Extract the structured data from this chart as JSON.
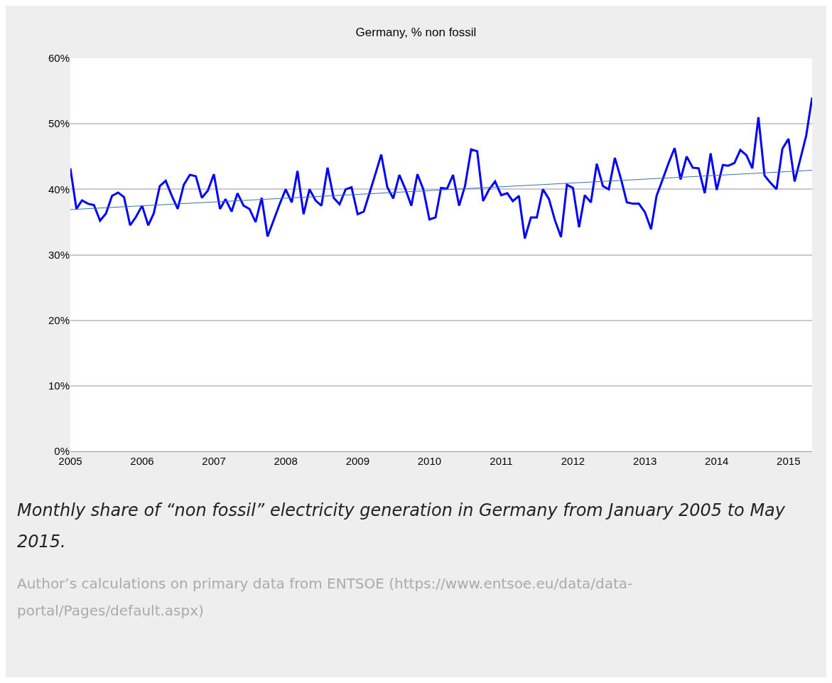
{
  "chart_data": {
    "type": "line",
    "title": "Germany, % non fossil",
    "x": [
      "2005-01",
      "2005-02",
      "2005-03",
      "2005-04",
      "2005-05",
      "2005-06",
      "2005-07",
      "2005-08",
      "2005-09",
      "2005-10",
      "2005-11",
      "2005-12",
      "2006-01",
      "2006-02",
      "2006-03",
      "2006-04",
      "2006-05",
      "2006-06",
      "2006-07",
      "2006-08",
      "2006-09",
      "2006-10",
      "2006-11",
      "2006-12",
      "2007-01",
      "2007-02",
      "2007-03",
      "2007-04",
      "2007-05",
      "2007-06",
      "2007-07",
      "2007-08",
      "2007-09",
      "2007-10",
      "2007-11",
      "2007-12",
      "2008-01",
      "2008-02",
      "2008-03",
      "2008-04",
      "2008-05",
      "2008-06",
      "2008-07",
      "2008-08",
      "2008-09",
      "2008-10",
      "2008-11",
      "2008-12",
      "2009-01",
      "2009-02",
      "2009-03",
      "2009-04",
      "2009-05",
      "2009-06",
      "2009-07",
      "2009-08",
      "2009-09",
      "2009-10",
      "2009-11",
      "2009-12",
      "2010-01",
      "2010-02",
      "2010-03",
      "2010-04",
      "2010-05",
      "2010-06",
      "2010-07",
      "2010-08",
      "2010-09",
      "2010-10",
      "2010-11",
      "2010-12",
      "2011-01",
      "2011-02",
      "2011-03",
      "2011-04",
      "2011-05",
      "2011-06",
      "2011-07",
      "2011-08",
      "2011-09",
      "2011-10",
      "2011-11",
      "2011-12",
      "2012-01",
      "2012-02",
      "2012-03",
      "2012-04",
      "2012-05",
      "2012-06",
      "2012-07",
      "2012-08",
      "2012-09",
      "2012-10",
      "2012-11",
      "2012-12",
      "2013-01",
      "2013-02",
      "2013-03",
      "2013-04",
      "2013-05",
      "2013-06",
      "2013-07",
      "2013-08",
      "2013-09",
      "2013-10",
      "2013-11",
      "2013-12",
      "2014-01",
      "2014-02",
      "2014-03",
      "2014-04",
      "2014-05",
      "2014-06",
      "2014-07",
      "2014-08",
      "2014-09",
      "2014-10",
      "2014-11",
      "2014-12",
      "2015-01",
      "2015-02",
      "2015-03",
      "2015-04",
      "2015-05"
    ],
    "series": [
      {
        "color": "#0000ff",
        "values": [
          43.2,
          37.0,
          38.3,
          37.8,
          37.6,
          35.2,
          36.3,
          39.0,
          39.5,
          38.8,
          34.5,
          35.8,
          37.5,
          34.5,
          36.3,
          40.5,
          41.3,
          39.0,
          37.0,
          40.7,
          42.2,
          42.0,
          38.7,
          39.8,
          42.3,
          37.0,
          38.5,
          36.6,
          39.4,
          37.5,
          37.0,
          35.0,
          38.7,
          32.8,
          35.3,
          37.7,
          40.0,
          38.0,
          42.8,
          36.2,
          40.0,
          38.3,
          37.5,
          43.3,
          38.7,
          37.7,
          40.0,
          40.3,
          36.2,
          36.6,
          39.3,
          42.3,
          45.3,
          40.3,
          38.6,
          42.2,
          40.0,
          37.5,
          42.3,
          40.0,
          35.4,
          35.7,
          40.2,
          40.1,
          42.2,
          37.5,
          40.5,
          46.1,
          45.8,
          38.2,
          40.0,
          41.2,
          39.1,
          39.4,
          38.2,
          39.0,
          32.5,
          35.7,
          35.7,
          40.0,
          38.5,
          35.3,
          32.7,
          40.7,
          40.2,
          34.2,
          39.1,
          38.0,
          43.9,
          40.5,
          40.0,
          44.8,
          41.6,
          38.0,
          37.8,
          37.8,
          36.5,
          33.9,
          39.0,
          41.5,
          44.0,
          46.3,
          41.5,
          45.0,
          43.3,
          43.2,
          39.4,
          45.5,
          39.9,
          43.7,
          43.6,
          44.0,
          46.0,
          45.2,
          43.2,
          51.0,
          42.1,
          41.0,
          40.0,
          46.2,
          47.7,
          41.2,
          44.5,
          48.2,
          54.0
        ]
      },
      {
        "type": "line",
        "color": "#3a6ea5",
        "x": [
          "2005-01",
          "2015-05"
        ],
        "values": [
          36.9,
          42.9
        ]
      }
    ],
    "xlim": [
      "2005-01",
      "2015-05"
    ],
    "xticks": [
      "2005",
      "2006",
      "2007",
      "2008",
      "2009",
      "2010",
      "2011",
      "2012",
      "2013",
      "2014",
      "2015"
    ],
    "ylim": [
      0,
      60
    ],
    "yticks": [
      {
        "value": 0,
        "label": "0%"
      },
      {
        "value": 10,
        "label": "10%"
      },
      {
        "value": 20,
        "label": "20%"
      },
      {
        "value": 30,
        "label": "30%"
      },
      {
        "value": 40,
        "label": "40%"
      },
      {
        "value": 50,
        "label": "50%"
      },
      {
        "value": 60,
        "label": "60%"
      }
    ],
    "grid": "y",
    "marker": "none",
    "line_style": "solid",
    "annotations": [
      "Monthly share of “non fossil” electricity generation in Germany from January 2005 to May 2015.",
      "Author’s calculations on primary data from ENTSOE (https://www.entsoe.eu/data/data-portal/Pages/default.aspx)"
    ]
  }
}
